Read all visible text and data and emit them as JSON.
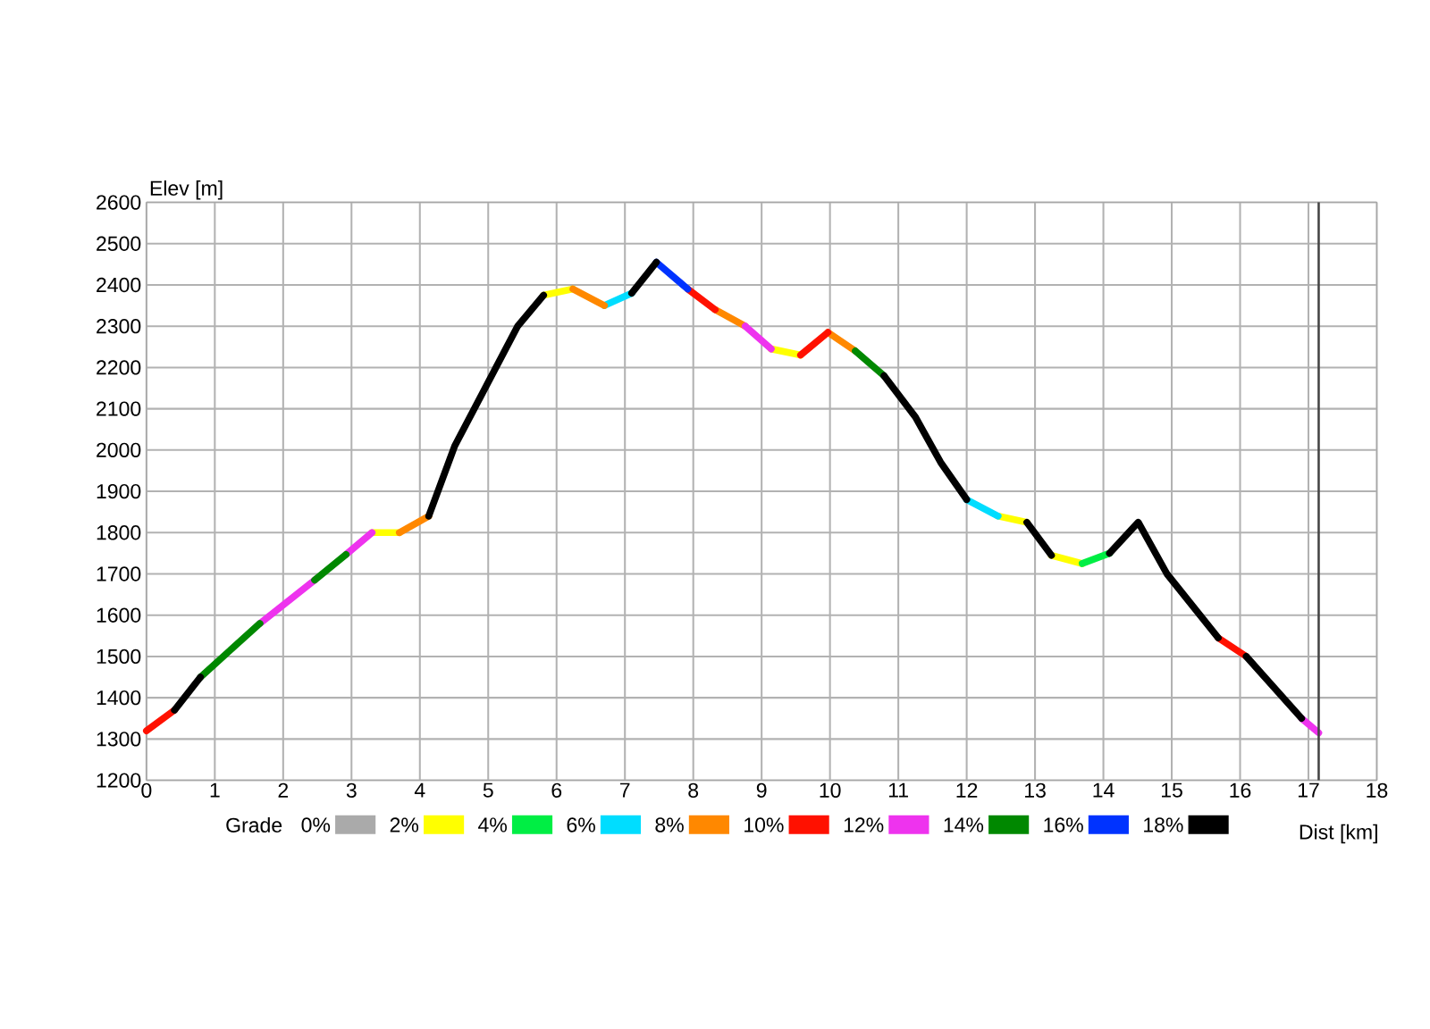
{
  "chart_data": {
    "type": "line",
    "xlabel": "Dist [km]",
    "ylabel": "Elev [m]",
    "legend_title": "Grade",
    "xlim": [
      0,
      18
    ],
    "xticks": [
      0,
      1,
      2,
      3,
      4,
      5,
      6,
      7,
      8,
      9,
      10,
      11,
      12,
      13,
      14,
      15,
      16,
      17,
      18
    ],
    "ylim": [
      1200,
      2600
    ],
    "yticks": [
      1200,
      1300,
      1400,
      1500,
      1600,
      1700,
      1800,
      1900,
      2000,
      2100,
      2200,
      2300,
      2400,
      2500,
      2600
    ],
    "grid": true,
    "legend": "bottom",
    "marker": "none",
    "line_style": "solid",
    "ref_lines": [
      {
        "axis": "x",
        "value": 17.15,
        "color": "#444444"
      }
    ],
    "series": [
      {
        "name": "0%",
        "color": "#aaaaaa"
      },
      {
        "name": "2%",
        "color": "#ffff00",
        "x": [
          3.3,
          3.7,
          null,
          5.81,
          6.24,
          null,
          9.14,
          9.57,
          null,
          12.46,
          12.88,
          null,
          13.24,
          13.69
        ],
        "values": [
          1800,
          1800,
          null,
          2375,
          2390,
          null,
          2245,
          2230,
          null,
          1840,
          1825,
          null,
          1745,
          1725
        ]
      },
      {
        "name": "4%",
        "color": "#00ee44",
        "x": [
          13.69,
          14.09
        ],
        "values": [
          1725,
          1750
        ]
      },
      {
        "name": "6%",
        "color": "#00ddff",
        "x": [
          6.7,
          7.1,
          null,
          12.0,
          12.46
        ],
        "values": [
          2350,
          2380,
          null,
          1880,
          1840
        ]
      },
      {
        "name": "8%",
        "color": "#ff8800",
        "x": [
          3.7,
          4.13,
          null,
          6.24,
          6.7,
          null,
          8.32,
          8.76,
          null,
          9.97,
          10.37
        ],
        "values": [
          1800,
          1840,
          null,
          2390,
          2350,
          null,
          2340,
          2300,
          null,
          2285,
          2240
        ]
      },
      {
        "name": "10%",
        "color": "#ff1100",
        "x": [
          0,
          0.41,
          null,
          7.92,
          8.32,
          null,
          9.57,
          9.97,
          null,
          15.68,
          16.09
        ],
        "values": [
          1320,
          1370,
          null,
          2390,
          2340,
          null,
          2230,
          2285,
          null,
          1545,
          1500
        ]
      },
      {
        "name": "12%",
        "color": "#ee33ee",
        "x": [
          1.66,
          2.46,
          null,
          2.92,
          3.3,
          null,
          8.76,
          9.14,
          null,
          16.9,
          17.15
        ],
        "values": [
          1580,
          1685,
          null,
          1747,
          1800,
          null,
          2300,
          2245,
          null,
          1350,
          1315
        ]
      },
      {
        "name": "14%",
        "color": "#008800",
        "x": [
          0.79,
          1.66,
          null,
          2.46,
          2.92,
          null,
          10.37,
          10.79
        ],
        "values": [
          1450,
          1580,
          null,
          1685,
          1747,
          null,
          2240,
          2180
        ]
      },
      {
        "name": "16%",
        "color": "#0033ff",
        "x": [
          7.46,
          7.92
        ],
        "values": [
          2455,
          2390
        ]
      },
      {
        "name": "18%",
        "color": "#000000",
        "x": [
          0.41,
          0.79,
          null,
          4.13,
          4.51,
          4.97,
          5.43,
          5.81,
          null,
          7.1,
          7.46,
          null,
          10.79,
          11.25,
          11.62,
          12.0,
          null,
          12.88,
          13.24,
          null,
          14.09,
          14.51,
          14.93,
          15.68,
          null,
          16.09,
          16.9
        ],
        "values": [
          1370,
          1450,
          null,
          1840,
          2010,
          2155,
          2300,
          2375,
          null,
          2380,
          2455,
          null,
          2180,
          2080,
          1970,
          1880,
          null,
          1825,
          1745,
          null,
          1750,
          1825,
          1700,
          1545,
          null,
          1500,
          1350
        ]
      }
    ]
  }
}
